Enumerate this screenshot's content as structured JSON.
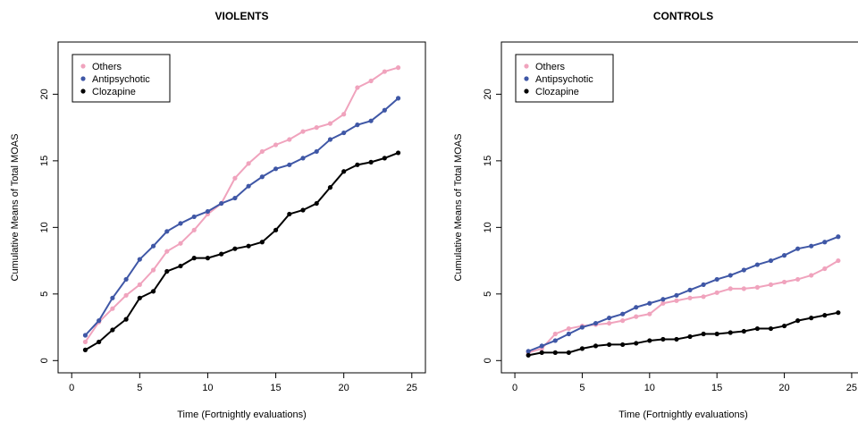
{
  "chart_data": [
    {
      "type": "line",
      "title": "VIOLENTS",
      "x_label": "Time (Fortnightly evaluations)",
      "y_label": "Cumulative Means of Total MOAS",
      "x": [
        1,
        2,
        3,
        4,
        5,
        6,
        7,
        8,
        9,
        10,
        11,
        12,
        13,
        14,
        15,
        16,
        17,
        18,
        19,
        20,
        21,
        22,
        23,
        24
      ],
      "series": [
        {
          "name": "Others",
          "color": "#f0a3bd",
          "values": [
            1.4,
            2.9,
            3.9,
            4.9,
            5.7,
            6.8,
            8.2,
            8.8,
            9.8,
            11.0,
            11.8,
            13.7,
            14.8,
            15.7,
            16.2,
            16.6,
            17.2,
            17.5,
            17.8,
            18.5,
            20.5,
            21.0,
            21.7,
            22.0
          ]
        },
        {
          "name": "Antipsychotic",
          "color": "#3f57a6",
          "values": [
            1.9,
            3.0,
            4.7,
            6.1,
            7.6,
            8.6,
            9.7,
            10.3,
            10.8,
            11.2,
            11.8,
            12.2,
            13.1,
            13.8,
            14.4,
            14.7,
            15.2,
            15.7,
            16.6,
            17.1,
            17.7,
            18.0,
            18.8,
            19.7
          ]
        },
        {
          "name": "Clozapine",
          "color": "#000000",
          "values": [
            0.8,
            1.4,
            2.3,
            3.1,
            4.7,
            5.2,
            6.7,
            7.1,
            7.7,
            7.7,
            8.0,
            8.4,
            8.6,
            8.9,
            9.8,
            11.0,
            11.3,
            11.8,
            13.0,
            14.2,
            14.7,
            14.9,
            15.2,
            15.6
          ]
        }
      ],
      "xlim": [
        -1,
        26
      ],
      "ylim": [
        -0.92,
        23.92
      ],
      "xticks": [
        0,
        5,
        10,
        15,
        20,
        25
      ],
      "yticks": [
        0,
        5,
        10,
        15,
        20
      ],
      "legend": "topleft"
    },
    {
      "type": "line",
      "title": "CONTROLS",
      "x_label": "Time (Fortnightly evaluations)",
      "y_label": "Cumulative Means of Total MOAS",
      "x": [
        1,
        2,
        3,
        4,
        5,
        6,
        7,
        8,
        9,
        10,
        11,
        12,
        13,
        14,
        15,
        16,
        17,
        18,
        19,
        20,
        21,
        22,
        23,
        24
      ],
      "series": [
        {
          "name": "Others",
          "color": "#f0a3bd",
          "values": [
            0.6,
            0.9,
            2.0,
            2.4,
            2.6,
            2.7,
            2.8,
            3.0,
            3.3,
            3.5,
            4.3,
            4.5,
            4.7,
            4.8,
            5.1,
            5.4,
            5.4,
            5.5,
            5.7,
            5.9,
            6.1,
            6.4,
            6.9,
            7.5
          ]
        },
        {
          "name": "Antipsychotic",
          "color": "#3f57a6",
          "values": [
            0.7,
            1.1,
            1.5,
            2.0,
            2.5,
            2.8,
            3.2,
            3.5,
            4.0,
            4.3,
            4.6,
            4.9,
            5.3,
            5.7,
            6.1,
            6.4,
            6.8,
            7.2,
            7.5,
            7.9,
            8.4,
            8.6,
            8.9,
            9.3
          ]
        },
        {
          "name": "Clozapine",
          "color": "#000000",
          "values": [
            0.4,
            0.6,
            0.6,
            0.6,
            0.9,
            1.1,
            1.2,
            1.2,
            1.3,
            1.5,
            1.6,
            1.6,
            1.8,
            2.0,
            2.0,
            2.1,
            2.2,
            2.4,
            2.4,
            2.6,
            3.0,
            3.2,
            3.4,
            3.6
          ]
        }
      ],
      "xlim": [
        -1,
        26
      ],
      "ylim": [
        -0.92,
        23.92
      ],
      "xticks": [
        0,
        5,
        10,
        15,
        20,
        25
      ],
      "yticks": [
        0,
        5,
        10,
        15,
        20
      ],
      "legend": "topleft"
    }
  ]
}
